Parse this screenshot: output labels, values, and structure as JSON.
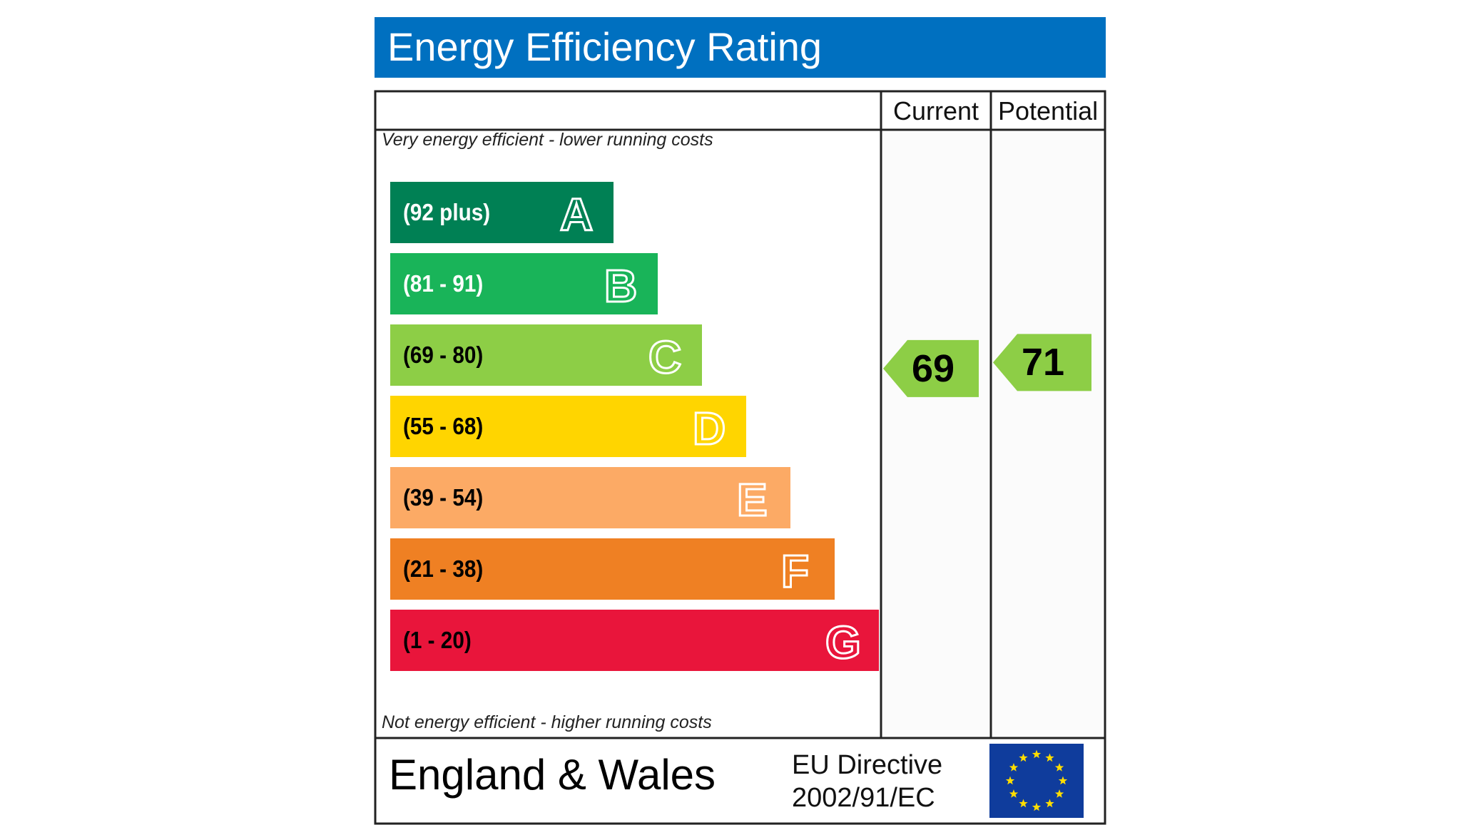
{
  "header": {
    "title": "Energy Efficiency Rating"
  },
  "columns": {
    "current": "Current",
    "potential": "Potential"
  },
  "notes": {
    "top": "Very energy efficient - lower running costs",
    "bottom": "Not energy efficient - higher running costs"
  },
  "footer": {
    "region": "England & Wales",
    "directive_line1": "EU Directive",
    "directive_line2": "2002/91/EC",
    "flag": "eu-flag-icon"
  },
  "chart_data": {
    "type": "bar",
    "title": "Energy Efficiency Rating",
    "bands": [
      {
        "letter": "A",
        "range": "(92 plus)",
        "color": "#008054",
        "text_color": "#ffffff"
      },
      {
        "letter": "B",
        "range": "(81 - 91)",
        "color": "#19b459",
        "text_color": "#ffffff"
      },
      {
        "letter": "C",
        "range": "(69 - 80)",
        "color": "#8dce46",
        "text_color": "#000000"
      },
      {
        "letter": "D",
        "range": "(55 - 68)",
        "color": "#ffd500",
        "text_color": "#000000"
      },
      {
        "letter": "E",
        "range": "(39 - 54)",
        "color": "#fcaa65",
        "text_color": "#000000"
      },
      {
        "letter": "F",
        "range": "(21 - 38)",
        "color": "#ef8023",
        "text_color": "#000000"
      },
      {
        "letter": "G",
        "range": "(1 - 20)",
        "color": "#e9153b",
        "text_color": "#000000"
      }
    ],
    "current": {
      "value": 69,
      "band": "C",
      "color": "#8dce46"
    },
    "potential": {
      "value": 71,
      "band": "C",
      "color": "#8dce46"
    }
  }
}
